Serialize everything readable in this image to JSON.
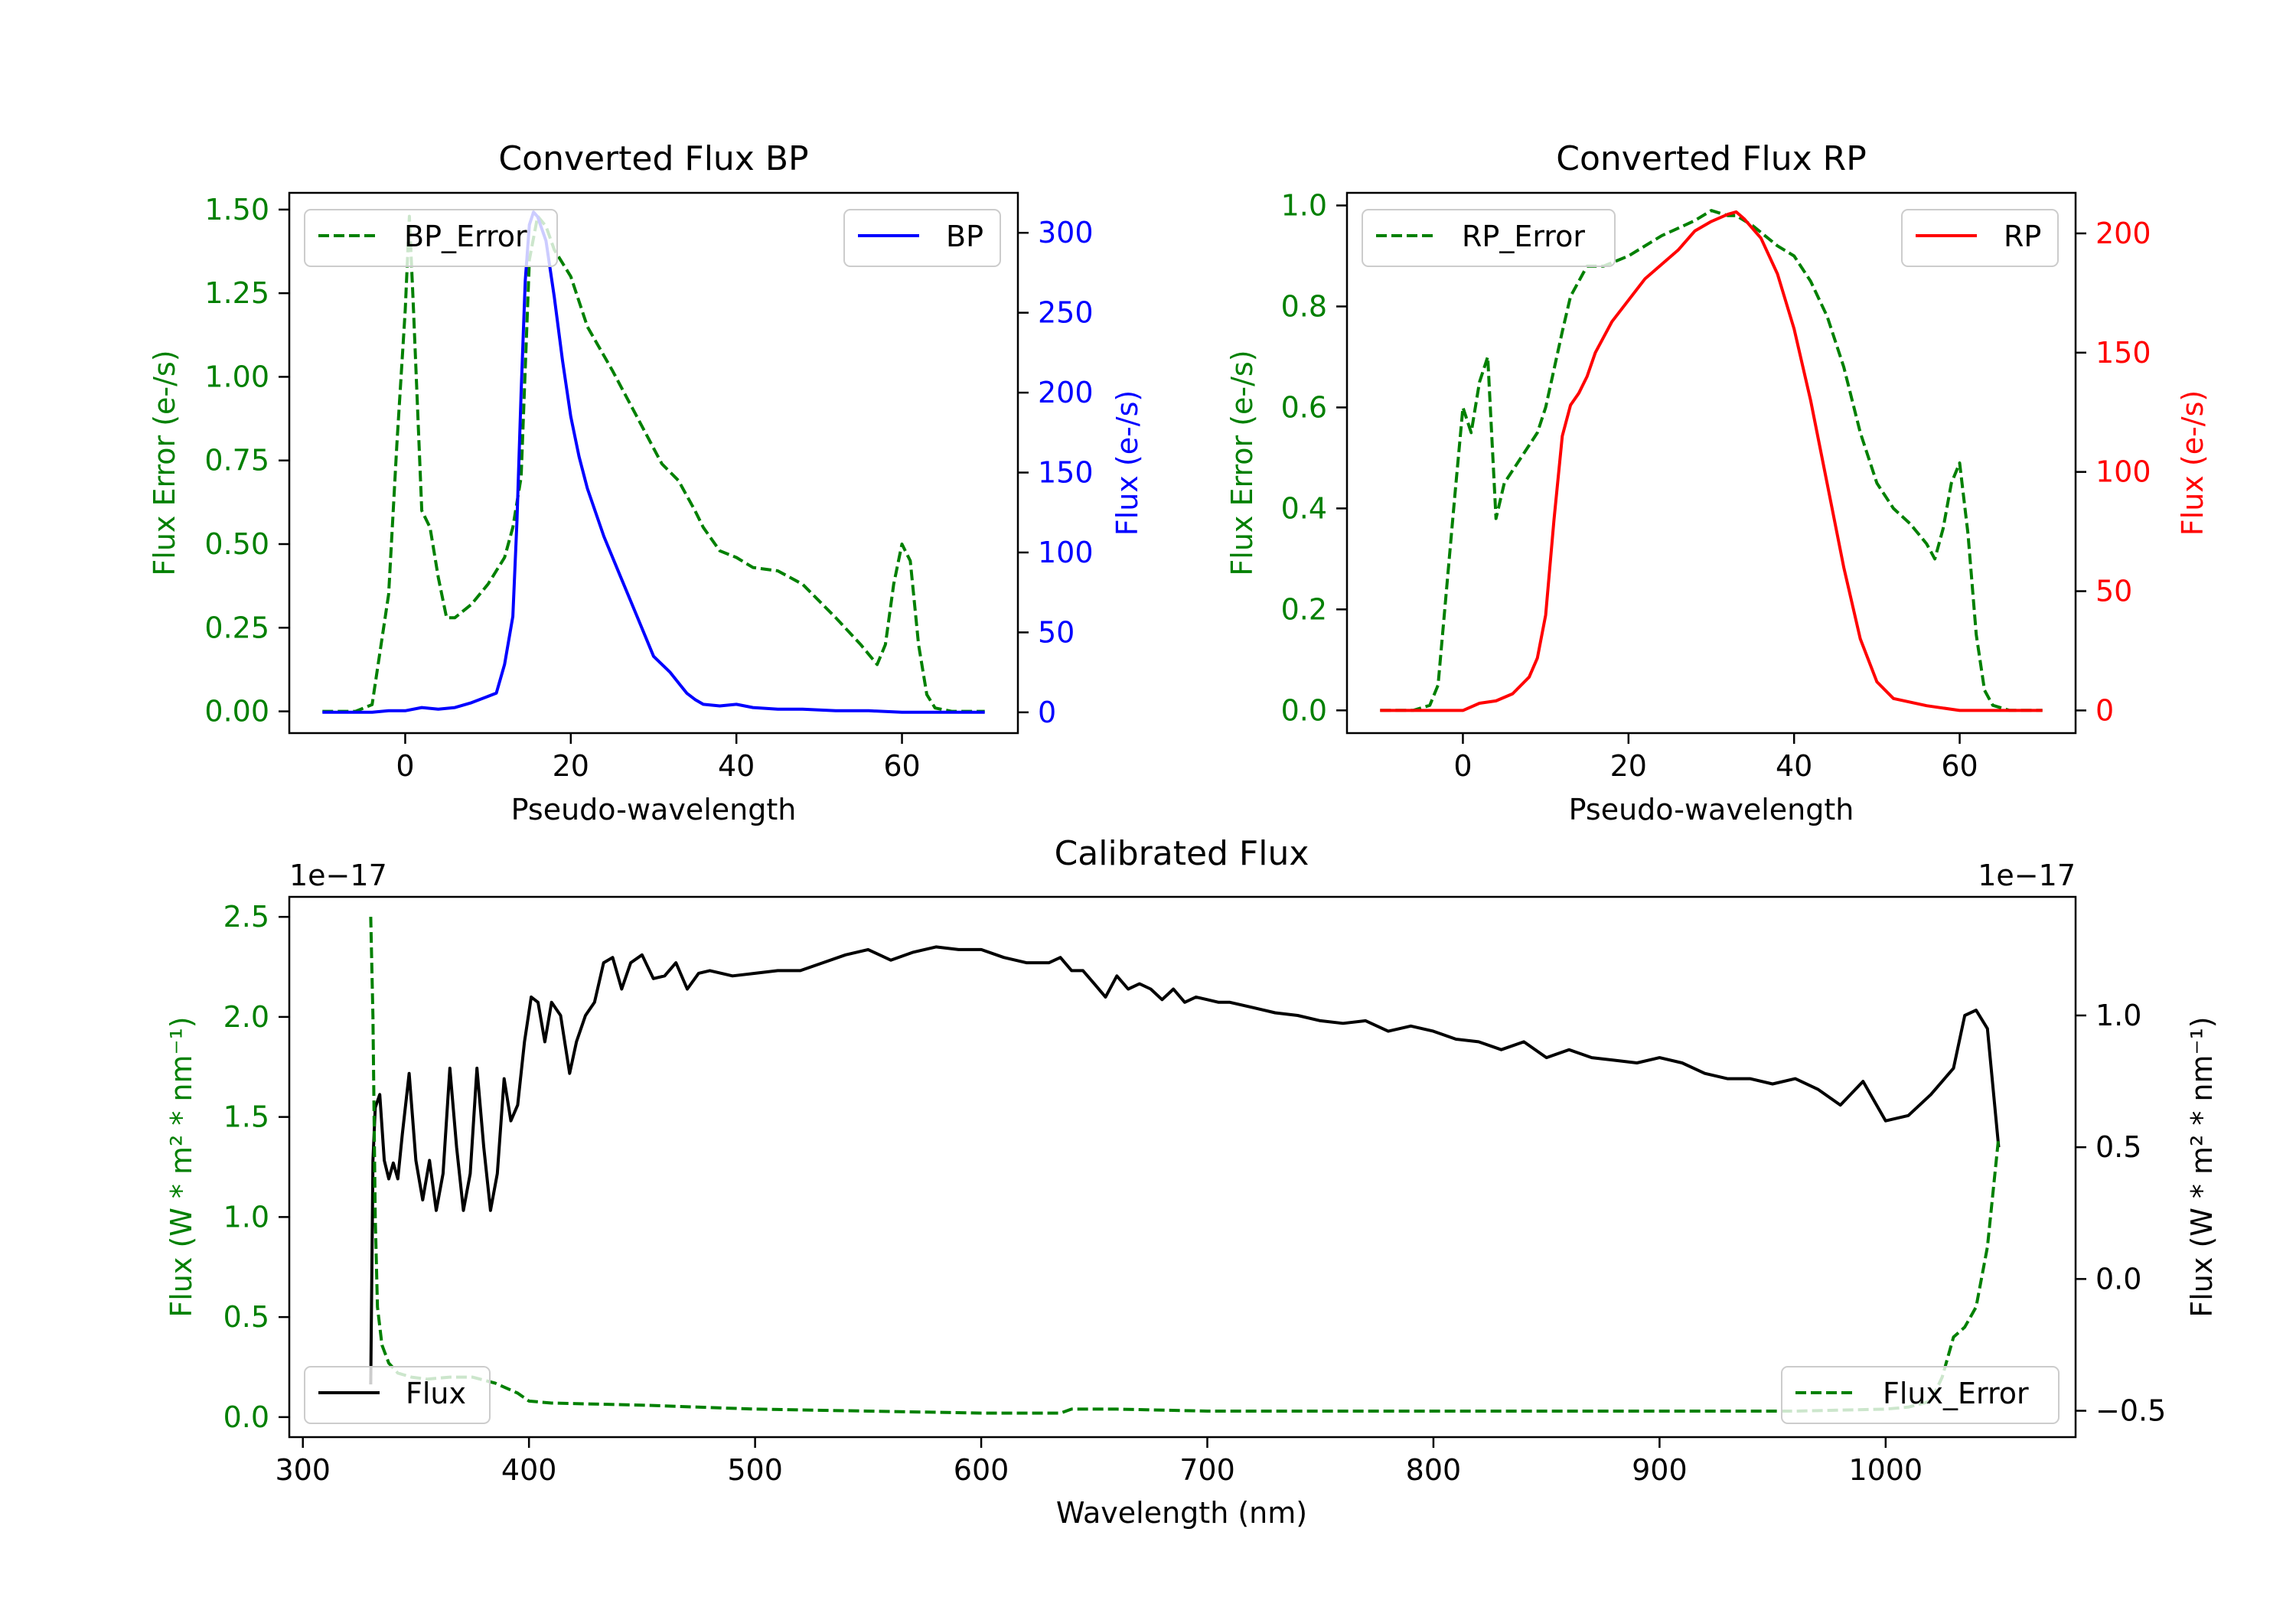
{
  "colors": {
    "bp": "#0000ff",
    "rp": "#ff0000",
    "error": "#008000",
    "flux": "#000000",
    "axis": "#000000",
    "legend_border": "#cccccc"
  },
  "chart_data": [
    {
      "id": "bp",
      "type": "line",
      "title": "Converted Flux BP",
      "xlabel": "Pseudo-wavelength",
      "ylabel_left": "Flux Error (e-/s)",
      "ylabel_right": "Flux (e-/s)",
      "xlim": [
        -14,
        74
      ],
      "ylim_left": [
        -0.065,
        1.55
      ],
      "ylim_right": [
        -13,
        325
      ],
      "xticks": [
        "0",
        "20",
        "40",
        "60"
      ],
      "yticks_left": [
        "0.00",
        "0.25",
        "0.50",
        "0.75",
        "1.00",
        "1.25",
        "1.50"
      ],
      "yticks_right": [
        "0",
        "50",
        "100",
        "150",
        "200",
        "250",
        "300"
      ],
      "legend_left": {
        "label": "BP_Error",
        "position": "upper-left"
      },
      "legend_right": {
        "label": "BP",
        "position": "upper-right"
      },
      "series": [
        {
          "name": "BP_Error",
          "axis": "left",
          "style": "dashed",
          "color_key": "error",
          "x": [
            -10,
            -6,
            -4,
            -2,
            -1,
            0,
            0.5,
            1,
            2,
            3,
            4,
            5,
            6,
            8,
            10,
            12,
            13,
            14,
            15,
            16,
            17,
            18,
            20,
            22,
            25,
            28,
            31,
            33,
            35,
            36,
            38,
            40,
            42,
            45,
            48,
            52,
            55,
            57,
            58,
            59,
            60,
            61,
            62,
            63,
            64,
            66,
            68,
            70
          ],
          "values": [
            0,
            0,
            0.02,
            0.35,
            0.8,
            1.2,
            1.48,
            1.2,
            0.6,
            0.55,
            0.4,
            0.28,
            0.28,
            0.32,
            0.38,
            0.46,
            0.55,
            0.7,
            1.35,
            1.48,
            1.45,
            1.38,
            1.3,
            1.15,
            1.02,
            0.88,
            0.74,
            0.69,
            0.6,
            0.55,
            0.48,
            0.46,
            0.43,
            0.42,
            0.38,
            0.28,
            0.2,
            0.14,
            0.2,
            0.38,
            0.5,
            0.45,
            0.2,
            0.05,
            0.01,
            0,
            0,
            0
          ]
        },
        {
          "name": "BP",
          "axis": "right",
          "style": "solid",
          "color_key": "bp",
          "x": [
            -10,
            -6,
            -4,
            -2,
            0,
            2,
            4,
            6,
            8,
            10,
            11,
            12,
            13,
            13.5,
            14,
            14.5,
            15,
            15.5,
            16,
            17,
            18,
            19,
            20,
            21,
            22,
            24,
            26,
            28,
            30,
            32,
            34,
            35,
            36,
            38,
            40,
            42,
            45,
            48,
            52,
            56,
            60,
            64,
            70
          ],
          "values": [
            0,
            0,
            0,
            1,
            1,
            3,
            2,
            3,
            6,
            10,
            12,
            30,
            60,
            120,
            200,
            270,
            305,
            313,
            310,
            295,
            260,
            220,
            185,
            160,
            140,
            110,
            85,
            60,
            35,
            25,
            12,
            8,
            5,
            4,
            5,
            3,
            2,
            2,
            1,
            1,
            0,
            0,
            0
          ]
        }
      ]
    },
    {
      "id": "rp",
      "type": "line",
      "title": "Converted Flux RP",
      "xlabel": "Pseudo-wavelength",
      "ylabel_left": "Flux Error (e-/s)",
      "ylabel_right": "Flux (e-/s)",
      "xlim": [
        -14,
        74
      ],
      "ylim_left": [
        -0.045,
        1.025
      ],
      "ylim_right": [
        -9.5,
        217
      ],
      "xticks": [
        "0",
        "20",
        "40",
        "60"
      ],
      "yticks_left": [
        "0.0",
        "0.2",
        "0.4",
        "0.6",
        "0.8",
        "1.0"
      ],
      "yticks_right": [
        "0",
        "50",
        "100",
        "150",
        "200"
      ],
      "legend_left": {
        "label": "RP_Error",
        "position": "upper-left"
      },
      "legend_right": {
        "label": "RP",
        "position": "upper-right"
      },
      "series": [
        {
          "name": "RP_Error",
          "axis": "left",
          "style": "dashed",
          "color_key": "error",
          "x": [
            -10,
            -6,
            -4,
            -3,
            -1,
            0,
            1,
            2,
            3,
            4,
            5,
            7,
            9,
            10,
            12,
            13,
            14,
            15,
            17,
            20,
            24,
            28,
            30,
            32,
            33,
            35,
            38,
            40,
            42,
            44,
            46,
            48,
            50,
            52,
            54,
            55,
            56,
            57,
            58,
            59,
            60,
            61,
            62,
            63,
            64,
            66,
            68,
            70
          ],
          "values": [
            0,
            0,
            0.01,
            0.05,
            0.42,
            0.6,
            0.55,
            0.65,
            0.7,
            0.38,
            0.45,
            0.5,
            0.55,
            0.6,
            0.75,
            0.82,
            0.85,
            0.88,
            0.88,
            0.9,
            0.94,
            0.97,
            0.99,
            0.98,
            0.98,
            0.96,
            0.92,
            0.9,
            0.85,
            0.78,
            0.68,
            0.55,
            0.45,
            0.4,
            0.37,
            0.35,
            0.33,
            0.3,
            0.36,
            0.45,
            0.49,
            0.35,
            0.15,
            0.04,
            0.01,
            0,
            0,
            0
          ]
        },
        {
          "name": "RP",
          "axis": "right",
          "style": "solid",
          "color_key": "rp",
          "x": [
            -10,
            -4,
            -2,
            0,
            2,
            4,
            6,
            8,
            9,
            10,
            11,
            12,
            13,
            14,
            15,
            16,
            18,
            20,
            22,
            24,
            26,
            28,
            30,
            32,
            33,
            34,
            36,
            38,
            40,
            42,
            44,
            46,
            48,
            50,
            52,
            56,
            60,
            64,
            70
          ],
          "values": [
            0,
            0,
            0,
            0,
            3,
            4,
            7,
            14,
            22,
            40,
            80,
            115,
            128,
            133,
            140,
            150,
            163,
            172,
            181,
            187,
            193,
            201,
            205,
            208,
            209,
            206,
            198,
            183,
            160,
            130,
            95,
            60,
            30,
            12,
            5,
            2,
            0,
            0,
            0
          ]
        }
      ]
    },
    {
      "id": "calibrated",
      "type": "line",
      "title": "Calibrated Flux",
      "xlabel": "Wavelength (nm)",
      "ylabel_left": "Flux (W * m² * nm⁻¹)",
      "ylabel_right": "Flux (W * m² * nm⁻¹)",
      "offset_left": "1e−17",
      "offset_right": "1e−17",
      "xlim": [
        294,
        1084
      ],
      "ylim_left": [
        -0.1,
        2.6
      ],
      "ylim_right": [
        -0.6,
        1.45
      ],
      "xticks": [
        "300",
        "400",
        "500",
        "600",
        "700",
        "800",
        "900",
        "1000"
      ],
      "yticks_left": [
        "0.0",
        "0.5",
        "1.0",
        "1.5",
        "2.0",
        "2.5"
      ],
      "yticks_right": [
        "−0.5",
        "0.0",
        "0.5",
        "1.0"
      ],
      "legend_left": {
        "label": "Flux",
        "position": "lower-left"
      },
      "legend_right": {
        "label": "Flux_Error",
        "position": "lower-right"
      },
      "series": [
        {
          "name": "Flux",
          "axis": "right",
          "style": "solid",
          "color_key": "flux",
          "x": [
            330,
            331,
            332,
            334,
            336,
            338,
            340,
            342,
            344,
            347,
            350,
            353,
            356,
            359,
            362,
            365,
            368,
            371,
            374,
            377,
            380,
            383,
            386,
            389,
            392,
            395,
            398,
            401,
            404,
            407,
            410,
            414,
            418,
            421,
            425,
            429,
            433,
            437,
            441,
            445,
            450,
            455,
            460,
            465,
            470,
            475,
            480,
            490,
            500,
            510,
            520,
            530,
            540,
            550,
            560,
            570,
            580,
            590,
            600,
            610,
            620,
            630,
            635,
            640,
            645,
            650,
            655,
            660,
            665,
            670,
            675,
            680,
            685,
            690,
            695,
            700,
            705,
            710,
            720,
            730,
            740,
            750,
            760,
            770,
            780,
            790,
            800,
            810,
            820,
            830,
            840,
            850,
            860,
            870,
            880,
            890,
            900,
            910,
            920,
            930,
            940,
            950,
            960,
            970,
            980,
            990,
            1000,
            1010,
            1020,
            1030,
            1035,
            1040,
            1045,
            1050
          ],
          "values": [
            -0.4,
            0.45,
            0.65,
            0.7,
            0.45,
            0.38,
            0.44,
            0.38,
            0.55,
            0.78,
            0.45,
            0.3,
            0.45,
            0.26,
            0.4,
            0.8,
            0.5,
            0.26,
            0.4,
            0.8,
            0.5,
            0.26,
            0.4,
            0.76,
            0.6,
            0.66,
            0.9,
            1.07,
            1.05,
            0.9,
            1.05,
            1.0,
            0.78,
            0.9,
            1.0,
            1.05,
            1.2,
            1.22,
            1.1,
            1.2,
            1.23,
            1.14,
            1.15,
            1.2,
            1.1,
            1.16,
            1.17,
            1.15,
            1.16,
            1.17,
            1.17,
            1.2,
            1.23,
            1.25,
            1.21,
            1.24,
            1.26,
            1.25,
            1.25,
            1.22,
            1.2,
            1.2,
            1.22,
            1.17,
            1.17,
            1.12,
            1.07,
            1.15,
            1.1,
            1.12,
            1.1,
            1.06,
            1.1,
            1.05,
            1.07,
            1.06,
            1.05,
            1.05,
            1.03,
            1.01,
            1.0,
            0.98,
            0.97,
            0.98,
            0.94,
            0.96,
            0.94,
            0.91,
            0.9,
            0.87,
            0.9,
            0.84,
            0.87,
            0.84,
            0.83,
            0.82,
            0.84,
            0.82,
            0.78,
            0.76,
            0.76,
            0.74,
            0.76,
            0.72,
            0.66,
            0.75,
            0.6,
            0.62,
            0.7,
            0.8,
            1.0,
            1.02,
            0.95,
            0.5
          ]
        },
        {
          "name": "Flux_Error",
          "axis": "left",
          "style": "dashed",
          "color_key": "error",
          "x": [
            330,
            331,
            332,
            333,
            335,
            338,
            342,
            348,
            355,
            365,
            375,
            385,
            395,
            400,
            410,
            450,
            500,
            550,
            600,
            620,
            635,
            640,
            660,
            700,
            760,
            800,
            860,
            900,
            960,
            1000,
            1010,
            1020,
            1025,
            1030,
            1035,
            1040,
            1045,
            1050
          ],
          "values": [
            2.5,
            2.0,
            1.0,
            0.55,
            0.36,
            0.27,
            0.22,
            0.2,
            0.19,
            0.2,
            0.2,
            0.17,
            0.12,
            0.08,
            0.07,
            0.06,
            0.04,
            0.03,
            0.02,
            0.02,
            0.02,
            0.04,
            0.04,
            0.03,
            0.03,
            0.03,
            0.03,
            0.03,
            0.03,
            0.04,
            0.05,
            0.08,
            0.2,
            0.4,
            0.45,
            0.55,
            0.85,
            1.4
          ]
        }
      ]
    }
  ]
}
